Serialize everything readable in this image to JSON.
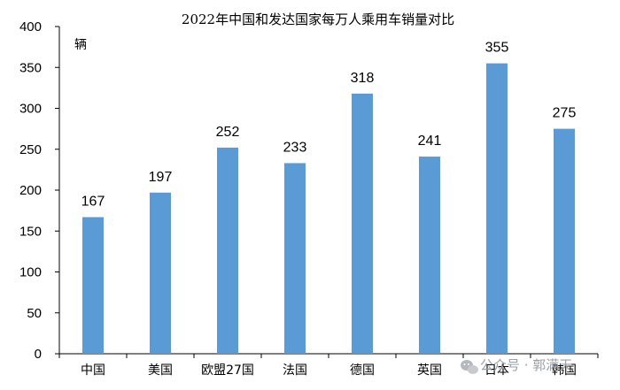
{
  "chart_data": {
    "type": "bar",
    "title": "2022年中国和发达国家每万人乘用车销量对比",
    "ylabel": "辆",
    "xlabel": "",
    "categories": [
      "中国",
      "美国",
      "欧盟27国",
      "法国",
      "德国",
      "英国",
      "日本",
      "韩国"
    ],
    "values": [
      167,
      197,
      252,
      233,
      318,
      241,
      355,
      275
    ],
    "ylim": [
      0,
      400
    ],
    "yticks": [
      0,
      50,
      100,
      150,
      200,
      250,
      300,
      350,
      400
    ],
    "bar_color": "#5b9bd5",
    "grid": false,
    "legend": "none"
  },
  "watermark": {
    "text": "公众号 · 郭满天",
    "icon": "wechat-icon"
  }
}
